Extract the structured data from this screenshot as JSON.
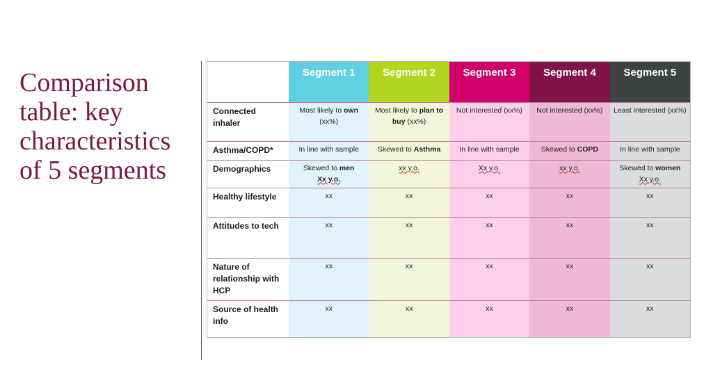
{
  "title": "Comparison table: key characteristics of 5 segments",
  "colors": {
    "title": "#7a1746",
    "segment_1": "#5fd0e2",
    "segment_2": "#b4d51e",
    "segment_3": "#d0006b",
    "segment_4": "#7e144a",
    "segment_5": "#3d4243",
    "segment_1_light": "#e0f3f8",
    "segment_2_light": "#f1f5d9",
    "segment_3_light": "#fcd0e8",
    "segment_4_light": "#eebad3",
    "segment_5_light": "#dadcde"
  },
  "table": {
    "segments": [
      "Segment 1",
      "Segment 2",
      "Segment 3",
      "Segment 4",
      "Segment 5"
    ],
    "rows": [
      {
        "label": "Connected inhaler",
        "cells": [
          {
            "pre": "Most likely to ",
            "bold": "own",
            "post": " (xx%)"
          },
          {
            "pre": "Most likely to ",
            "bold": "plan to buy",
            "post": " (xx%)"
          },
          {
            "pre": "Not interested (xx%)"
          },
          {
            "pre": "Not interested (xx%)"
          },
          {
            "pre": "Least interested (xx%)"
          }
        ]
      },
      {
        "label": "Asthma/COPD*",
        "cells": [
          {
            "pre": "In line with sample"
          },
          {
            "pre": "Skewed to ",
            "bold": "Asthma"
          },
          {
            "pre": "In line with sample"
          },
          {
            "pre": "Skewed to ",
            "bold": "COPD"
          },
          {
            "pre": "In line with sample"
          }
        ]
      },
      {
        "label": "Demographics",
        "cells": [
          {
            "pre": "Skewed to ",
            "bold": "men",
            "line2_bold": "Xx y.o."
          },
          {
            "pre": "xx y.o."
          },
          {
            "pre": "Xx y.o."
          },
          {
            "pre": "xx y.o."
          },
          {
            "pre": "Skewed to ",
            "bold": "women",
            "line2": "Xx y.o."
          }
        ]
      },
      {
        "label": "Healthy lifestyle",
        "cells": [
          {
            "pre": "xx"
          },
          {
            "pre": "xx"
          },
          {
            "pre": "xx"
          },
          {
            "pre": "xx"
          },
          {
            "pre": "xx"
          }
        ]
      },
      {
        "label": "Attitudes to tech",
        "cells": [
          {
            "pre": "xx"
          },
          {
            "pre": "xx"
          },
          {
            "pre": "xx"
          },
          {
            "pre": "xx"
          },
          {
            "pre": "xx"
          }
        ]
      },
      {
        "label": "Nature of relationship with HCP",
        "cells": [
          {
            "pre": "xx"
          },
          {
            "pre": "xx"
          },
          {
            "pre": "xx"
          },
          {
            "pre": "xx"
          },
          {
            "pre": "xx"
          }
        ]
      },
      {
        "label": "Source of health info",
        "cells": [
          {
            "pre": "xx"
          },
          {
            "pre": "xx"
          },
          {
            "pre": "xx"
          },
          {
            "pre": "xx"
          },
          {
            "pre": "xx"
          }
        ]
      }
    ]
  }
}
